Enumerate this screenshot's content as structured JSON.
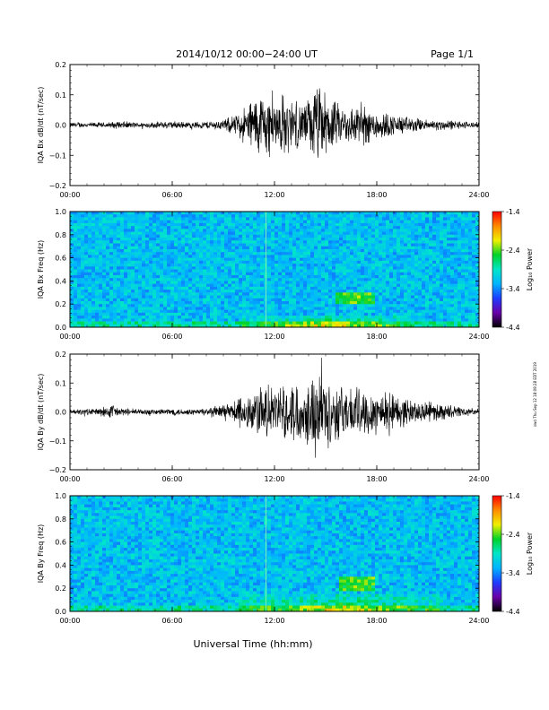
{
  "header": {
    "date_range": "2014/10/12   00:00−24:00 UT",
    "page": "Page 1/1"
  },
  "x_axis_title": "Universal Time (hh:mm)",
  "side_stamp": "swd Thu Sep 12 18:09:28 EDT 2019",
  "colors": {
    "trace": "#000000",
    "colorbar_stops": [
      "#000000",
      "#6a00a8",
      "#1e3cff",
      "#00b4ff",
      "#00e6c8",
      "#00d22a",
      "#f0f000",
      "#ff8c00",
      "#ff0000"
    ]
  },
  "chart_data": [
    {
      "type": "line",
      "ylabel": "IQA Bx dB/dt (nT/sec)",
      "xlim": [
        0,
        24
      ],
      "ylim": [
        -0.2,
        0.2
      ],
      "x_ticks": [
        "00:00",
        "06:00",
        "12:00",
        "18:00",
        "24:00"
      ],
      "y_ticks": [
        "0.2",
        "0.1",
        "0.0",
        "−0.1",
        "−0.2"
      ],
      "series": [
        {
          "x": [
            0,
            1,
            2,
            3,
            4,
            5,
            6,
            7,
            8,
            9,
            10,
            10.5,
            11,
            11.5,
            12,
            12.5,
            13,
            13.5,
            14,
            14.5,
            15,
            15.5,
            16,
            17,
            18,
            19,
            20,
            21,
            22,
            23,
            24
          ],
          "amplitude": [
            0.01,
            0.01,
            0.01,
            0.015,
            0.01,
            0.012,
            0.015,
            0.012,
            0.015,
            0.02,
            0.05,
            0.09,
            0.12,
            0.13,
            0.09,
            0.12,
            0.1,
            0.08,
            0.1,
            0.16,
            0.12,
            0.09,
            0.07,
            0.08,
            0.06,
            0.04,
            0.03,
            0.02,
            0.02,
            0.015,
            0.01
          ],
          "peak_max": 0.15,
          "peak_min": -0.19
        }
      ]
    },
    {
      "type": "heatmap",
      "ylabel": "IQA Bx Freq (Hz)",
      "xlim": [
        0,
        24
      ],
      "ylim": [
        0,
        1.0
      ],
      "x_ticks": [
        "00:00",
        "06:00",
        "12:00",
        "18:00",
        "24:00"
      ],
      "y_ticks": [
        "1.0",
        "0.8",
        "0.6",
        "0.4",
        "0.2",
        "0.0"
      ],
      "colorbar": {
        "label": "Log₁₀ Power",
        "range": [
          -4.4,
          -1.4
        ],
        "ticks": [
          "-1.4",
          "-2.4",
          "-3.4",
          "-4.4"
        ]
      },
      "features": [
        {
          "kind": "vertical_streak",
          "time": 11.5,
          "freq_range": [
            0.0,
            1.0
          ]
        },
        {
          "kind": "band",
          "time_range": [
            15.5,
            17.8
          ],
          "freq_range": [
            0.2,
            0.3
          ]
        },
        {
          "kind": "low_freq_enhancement",
          "time_range": [
            10,
            20
          ],
          "freq_range": [
            0.0,
            0.1
          ]
        }
      ]
    },
    {
      "type": "line",
      "ylabel": "IQA By dB/dt (nT/sec)",
      "xlim": [
        0,
        24
      ],
      "ylim": [
        -0.2,
        0.2
      ],
      "x_ticks": [
        "00:00",
        "06:00",
        "12:00",
        "18:00",
        "24:00"
      ],
      "y_ticks": [
        "0.2",
        "0.1",
        "0.0",
        "−0.1",
        "−0.2"
      ],
      "series": [
        {
          "x": [
            0,
            1,
            2,
            2.5,
            3,
            4,
            5,
            6,
            7,
            8,
            9,
            10,
            10.5,
            11,
            11.5,
            12,
            12.5,
            13,
            13.5,
            14,
            14.5,
            15,
            15.5,
            16,
            17,
            18,
            19,
            20,
            21,
            22,
            23,
            24
          ],
          "amplitude": [
            0.01,
            0.012,
            0.02,
            0.03,
            0.015,
            0.012,
            0.012,
            0.015,
            0.012,
            0.015,
            0.03,
            0.06,
            0.08,
            0.1,
            0.11,
            0.09,
            0.1,
            0.12,
            0.11,
            0.13,
            0.18,
            0.14,
            0.12,
            0.1,
            0.1,
            0.09,
            0.07,
            0.05,
            0.04,
            0.03,
            0.02,
            0.01
          ],
          "peak_max": 0.19,
          "peak_min": -0.19
        }
      ]
    },
    {
      "type": "heatmap",
      "ylabel": "IQA By Freq (Hz)",
      "xlim": [
        0,
        24
      ],
      "ylim": [
        0,
        1.0
      ],
      "x_ticks": [
        "00:00",
        "06:00",
        "12:00",
        "18:00",
        "24:00"
      ],
      "y_ticks": [
        "1.0",
        "0.8",
        "0.6",
        "0.4",
        "0.2",
        "0.0"
      ],
      "colorbar": {
        "label": "Log₁₀ Power",
        "range": [
          -4.4,
          -1.4
        ],
        "ticks": [
          "-1.4",
          "-2.4",
          "-3.4",
          "-4.4"
        ]
      },
      "features": [
        {
          "kind": "vertical_streak",
          "time": 11.5,
          "freq_range": [
            0.0,
            1.0
          ]
        },
        {
          "kind": "band",
          "time_range": [
            15.8,
            17.8
          ],
          "freq_range": [
            0.18,
            0.3
          ]
        },
        {
          "kind": "low_freq_enhancement",
          "time_range": [
            10,
            22
          ],
          "freq_range": [
            0.0,
            0.15
          ]
        }
      ]
    }
  ]
}
